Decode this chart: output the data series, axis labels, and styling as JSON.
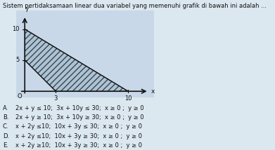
{
  "title": "Sistem pertidaksamaan linear dua variabel yang memenuhi grafik di bawah ini adalah ...",
  "graph_bg": "#c8d8e8",
  "fig_bg": "#dce8f0",
  "axis_color": "#111111",
  "line1_color": "#111111",
  "line2_color": "#111111",
  "hatch_color": "#444444",
  "hatch_bg": "#aac4d8",
  "x_ticks": [
    3,
    10
  ],
  "y_ticks": [
    5,
    10
  ],
  "xlim": [
    -0.8,
    12.5
  ],
  "ylim": [
    -1.0,
    13.0
  ],
  "line1_pts": [
    [
      0,
      5
    ],
    [
      3,
      0
    ]
  ],
  "line2_pts": [
    [
      0,
      10
    ],
    [
      10,
      0
    ]
  ],
  "shade_verts": [
    [
      0,
      5
    ],
    [
      0,
      10
    ],
    [
      10,
      0
    ],
    [
      3,
      0
    ]
  ],
  "xlabel": "x",
  "ylabel": "Y",
  "answer_lines": [
    [
      "A.",
      "2x + y ≤ 10;  3x + 10y ≤ 30;  x ≥ 0 ;  y ≥ 0"
    ],
    [
      "B.",
      "2x + y ≥ 10;  3x + 10y ≥ 30;  x ≥ 0 ;  y ≥ 0"
    ],
    [
      "C.",
      "x + 2y ≤10;  10x + 3y ≤ 30;  x ≥ 0 ;  y ≥ 0"
    ],
    [
      "D.",
      "x + 2y ≤10;  10x + 3y ≥ 30;  x ≥ 0 ;  y ≥ 0"
    ],
    [
      "E.",
      "x + 2y ≥10;  10x + 3y ≥ 30;  x ≥ 0 ;  y ≥ 0"
    ]
  ],
  "fig_width": 3.91,
  "fig_height": 2.14,
  "dpi": 100
}
